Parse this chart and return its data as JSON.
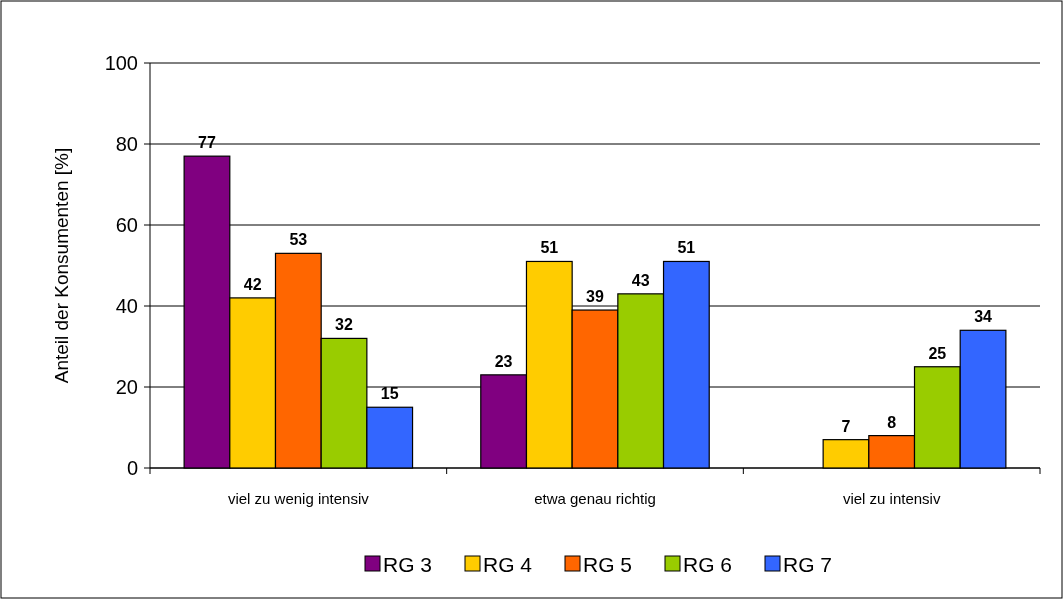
{
  "chart_data": {
    "type": "bar",
    "ylabel": "Anteil der Konsumenten [%]",
    "categories": [
      "viel zu wenig intensiv",
      "etwa genau richtig",
      "viel zu intensiv"
    ],
    "series": [
      {
        "name": "RG 3",
        "color": "#800080",
        "values": [
          77,
          23,
          null
        ]
      },
      {
        "name": "RG 4",
        "color": "#ffcc00",
        "values": [
          42,
          51,
          7
        ]
      },
      {
        "name": "RG 5",
        "color": "#ff6600",
        "values": [
          53,
          39,
          8
        ]
      },
      {
        "name": "RG 6",
        "color": "#99cc00",
        "values": [
          32,
          43,
          25
        ]
      },
      {
        "name": "RG 7",
        "color": "#3366ff",
        "values": [
          15,
          51,
          34
        ]
      }
    ],
    "ylim": [
      0,
      100
    ],
    "yticks": [
      0,
      20,
      40,
      60,
      80,
      100
    ],
    "grid": "y",
    "legend": "bottom",
    "data_labels": true
  }
}
